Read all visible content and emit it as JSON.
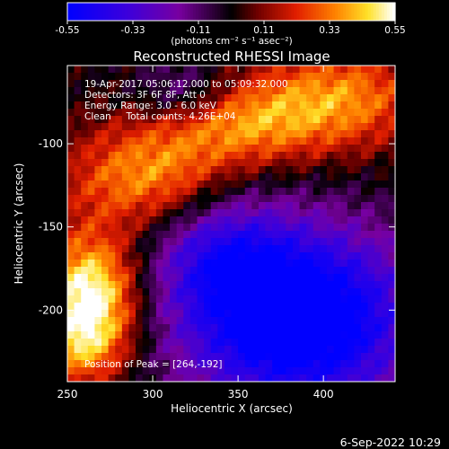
{
  "chart_data": {
    "type": "heatmap",
    "title": "Reconstructed RHESSI Image",
    "xlabel": "Heliocentric X (arcsec)",
    "ylabel": "Heliocentric Y (arcsec)",
    "xlim": [
      250,
      442
    ],
    "ylim": [
      -243,
      -53
    ],
    "xticks": [
      "250",
      "300",
      "350",
      "400"
    ],
    "xtick_values": [
      250,
      300,
      350,
      400
    ],
    "yticks": [
      "-100",
      "-150",
      "-200"
    ],
    "ytick_values": [
      -100,
      -150,
      -200
    ],
    "colorbar": {
      "min": -0.55,
      "max": 0.55,
      "ticks": [
        "-0.55",
        "-0.33",
        "-0.11",
        "0.11",
        "0.33",
        "0.55"
      ],
      "tick_values": [
        -0.55,
        -0.33,
        -0.11,
        0.11,
        0.33,
        0.55
      ],
      "label": "(photons cm⁻² s⁻¹ asec⁻²)"
    },
    "annotations": [
      "19-Apr-2017 05:06:12.000 to 05:09:32.000",
      "Detectors: 3F 6F 8F, Att 0",
      "Energy Range: 3.0 - 6.0 keV",
      "Clean     Total counts: 4.26E+04"
    ],
    "peak_label": "Position of Peak = [264,-192]",
    "peak": [
      264,
      -192
    ],
    "sources": [
      {
        "x": 263,
        "y": -192,
        "amp": 0.6,
        "sx": 20,
        "sy": 26
      },
      {
        "x": 296,
        "y": -120,
        "amp": 0.36,
        "sx": 34,
        "sy": 22
      },
      {
        "x": 350,
        "y": -88,
        "amp": 0.32,
        "sx": 36,
        "sy": 18
      },
      {
        "x": 410,
        "y": -72,
        "amp": 0.34,
        "sx": 36,
        "sy": 22
      },
      {
        "x": 258,
        "y": -225,
        "amp": 0.22,
        "sx": 18,
        "sy": 16
      },
      {
        "x": 385,
        "y": -205,
        "amp": -0.72,
        "sx": 48,
        "sy": 38
      },
      {
        "x": 340,
        "y": -165,
        "amp": -0.28,
        "sx": 28,
        "sy": 26
      },
      {
        "x": 318,
        "y": -70,
        "amp": -0.22,
        "sx": 20,
        "sy": 14
      }
    ]
  },
  "footer_date": "6-Sep-2022 10:29"
}
